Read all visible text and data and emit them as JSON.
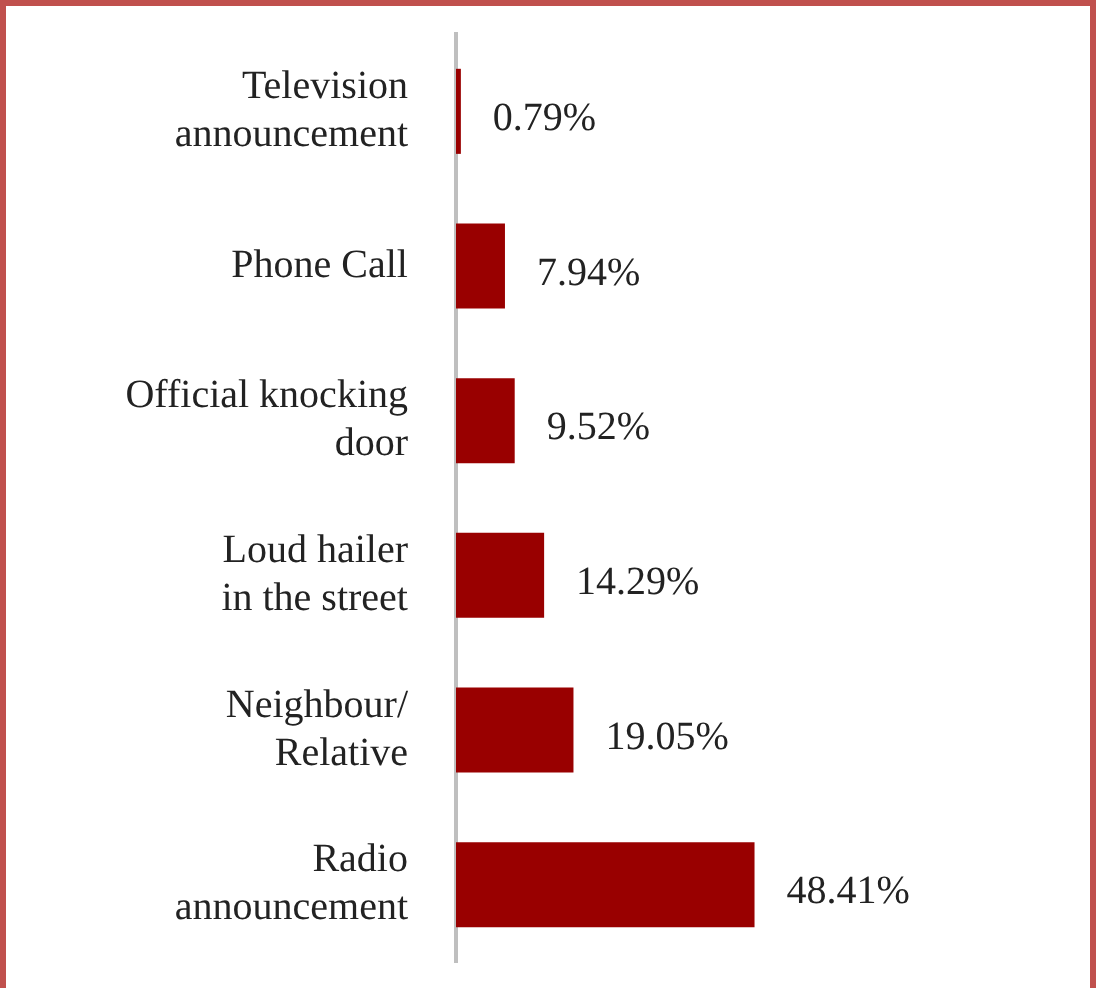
{
  "chart_data": {
    "type": "bar",
    "orientation": "horizontal",
    "categories": [
      "Television\nannouncement",
      "Phone Call",
      "Official knocking\ndoor",
      "Loud hailer\nin the street",
      "Neighbour/\nRelative",
      "Radio\nannouncement"
    ],
    "values": [
      0.79,
      7.94,
      9.52,
      14.29,
      19.05,
      48.41
    ],
    "value_labels": [
      "0.79%",
      "7.94%",
      "9.52%",
      "14.29%",
      "19.05%",
      "48.41%"
    ],
    "color": "#990000",
    "legend": false
  }
}
